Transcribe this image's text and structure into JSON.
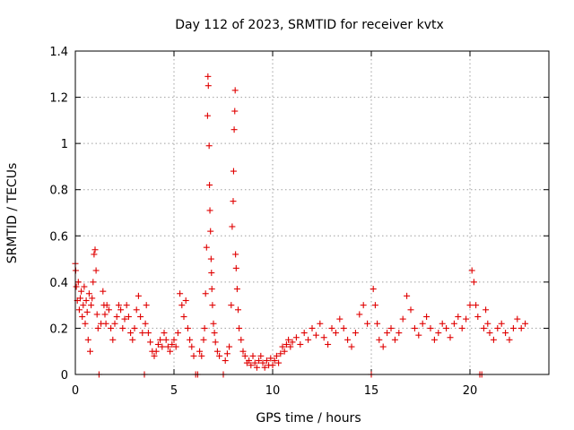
{
  "chart_data": {
    "type": "scatter",
    "title": "Day 112 of 2023, SRMTID for receiver kvtx",
    "xlabel": "GPS time / hours",
    "ylabel": "SRMTID / TECUs",
    "xlim": [
      0,
      24
    ],
    "ylim": [
      0,
      1.4
    ],
    "xticks": [
      0,
      5,
      10,
      15,
      20
    ],
    "yticks": [
      0,
      0.2,
      0.4,
      0.6,
      0.8,
      1.0,
      1.2,
      1.4
    ],
    "ytick_labels": [
      "0",
      "0.2",
      "0.4",
      "0.6",
      "0.8",
      "1",
      "1.2",
      "1.4"
    ],
    "grid": true,
    "marker": "+",
    "color": "#e00000",
    "series": [
      {
        "name": "SRMTID",
        "points": [
          [
            0.0,
            0.48
          ],
          [
            0.02,
            0.45
          ],
          [
            0.05,
            0.38
          ],
          [
            0.1,
            0.32
          ],
          [
            0.15,
            0.4
          ],
          [
            0.2,
            0.28
          ],
          [
            0.25,
            0.33
          ],
          [
            0.3,
            0.36
          ],
          [
            0.35,
            0.25
          ],
          [
            0.4,
            0.3
          ],
          [
            0.45,
            0.38
          ],
          [
            0.5,
            0.22
          ],
          [
            0.55,
            0.32
          ],
          [
            0.6,
            0.27
          ],
          [
            0.65,
            0.15
          ],
          [
            0.7,
            0.35
          ],
          [
            0.75,
            0.1
          ],
          [
            0.8,
            0.3
          ],
          [
            0.85,
            0.33
          ],
          [
            0.9,
            0.4
          ],
          [
            0.95,
            0.52
          ],
          [
            1.0,
            0.54
          ],
          [
            1.05,
            0.45
          ],
          [
            1.1,
            0.26
          ],
          [
            1.15,
            0.2
          ],
          [
            1.2,
            0.0
          ],
          [
            1.3,
            0.22
          ],
          [
            1.4,
            0.36
          ],
          [
            1.45,
            0.3
          ],
          [
            1.5,
            0.26
          ],
          [
            1.55,
            0.22
          ],
          [
            1.6,
            0.3
          ],
          [
            1.7,
            0.28
          ],
          [
            1.8,
            0.2
          ],
          [
            1.9,
            0.15
          ],
          [
            2.0,
            0.22
          ],
          [
            2.1,
            0.25
          ],
          [
            2.2,
            0.3
          ],
          [
            2.3,
            0.28
          ],
          [
            2.4,
            0.2
          ],
          [
            2.5,
            0.24
          ],
          [
            2.6,
            0.3
          ],
          [
            2.7,
            0.25
          ],
          [
            2.8,
            0.18
          ],
          [
            2.9,
            0.15
          ],
          [
            3.0,
            0.2
          ],
          [
            3.1,
            0.28
          ],
          [
            3.2,
            0.34
          ],
          [
            3.3,
            0.25
          ],
          [
            3.4,
            0.18
          ],
          [
            3.5,
            0.0
          ],
          [
            3.55,
            0.22
          ],
          [
            3.6,
            0.3
          ],
          [
            3.7,
            0.18
          ],
          [
            3.8,
            0.14
          ],
          [
            3.9,
            0.1
          ],
          [
            4.0,
            0.08
          ],
          [
            4.1,
            0.1
          ],
          [
            4.2,
            0.13
          ],
          [
            4.3,
            0.15
          ],
          [
            4.4,
            0.12
          ],
          [
            4.5,
            0.18
          ],
          [
            4.6,
            0.15
          ],
          [
            4.7,
            0.12
          ],
          [
            4.8,
            0.1
          ],
          [
            4.9,
            0.13
          ],
          [
            5.0,
            0.15
          ],
          [
            5.1,
            0.12
          ],
          [
            5.2,
            0.18
          ],
          [
            5.3,
            0.35
          ],
          [
            5.4,
            0.3
          ],
          [
            5.5,
            0.25
          ],
          [
            5.6,
            0.32
          ],
          [
            5.7,
            0.2
          ],
          [
            5.8,
            0.15
          ],
          [
            5.9,
            0.12
          ],
          [
            6.0,
            0.08
          ],
          [
            6.1,
            0.0
          ],
          [
            6.2,
            0.0
          ],
          [
            6.3,
            0.1
          ],
          [
            6.4,
            0.08
          ],
          [
            6.5,
            0.15
          ],
          [
            6.55,
            0.2
          ],
          [
            6.6,
            0.35
          ],
          [
            6.65,
            0.55
          ],
          [
            6.7,
            1.12
          ],
          [
            6.72,
            1.29
          ],
          [
            6.74,
            1.25
          ],
          [
            6.78,
            0.99
          ],
          [
            6.8,
            0.82
          ],
          [
            6.82,
            0.71
          ],
          [
            6.85,
            0.62
          ],
          [
            6.88,
            0.5
          ],
          [
            6.9,
            0.44
          ],
          [
            6.92,
            0.37
          ],
          [
            6.95,
            0.3
          ],
          [
            7.0,
            0.22
          ],
          [
            7.05,
            0.18
          ],
          [
            7.1,
            0.14
          ],
          [
            7.2,
            0.1
          ],
          [
            7.3,
            0.08
          ],
          [
            7.5,
            0.0
          ],
          [
            7.6,
            0.06
          ],
          [
            7.7,
            0.09
          ],
          [
            7.8,
            0.12
          ],
          [
            7.9,
            0.3
          ],
          [
            7.95,
            0.64
          ],
          [
            8.0,
            0.75
          ],
          [
            8.02,
            0.88
          ],
          [
            8.05,
            1.06
          ],
          [
            8.08,
            1.14
          ],
          [
            8.1,
            1.23
          ],
          [
            8.12,
            0.52
          ],
          [
            8.15,
            0.46
          ],
          [
            8.2,
            0.37
          ],
          [
            8.25,
            0.28
          ],
          [
            8.3,
            0.2
          ],
          [
            8.4,
            0.15
          ],
          [
            8.5,
            0.1
          ],
          [
            8.6,
            0.08
          ],
          [
            8.7,
            0.05
          ],
          [
            8.8,
            0.06
          ],
          [
            8.9,
            0.04
          ],
          [
            9.0,
            0.08
          ],
          [
            9.1,
            0.05
          ],
          [
            9.2,
            0.03
          ],
          [
            9.3,
            0.06
          ],
          [
            9.4,
            0.08
          ],
          [
            9.5,
            0.05
          ],
          [
            9.6,
            0.03
          ],
          [
            9.7,
            0.06
          ],
          [
            9.8,
            0.04
          ],
          [
            9.9,
            0.07
          ],
          [
            10.0,
            0.04
          ],
          [
            10.1,
            0.06
          ],
          [
            10.2,
            0.08
          ],
          [
            10.3,
            0.05
          ],
          [
            10.4,
            0.09
          ],
          [
            10.5,
            0.12
          ],
          [
            10.6,
            0.1
          ],
          [
            10.7,
            0.13
          ],
          [
            10.8,
            0.15
          ],
          [
            10.9,
            0.12
          ],
          [
            11.0,
            0.14
          ],
          [
            11.2,
            0.16
          ],
          [
            11.4,
            0.13
          ],
          [
            11.6,
            0.18
          ],
          [
            11.8,
            0.15
          ],
          [
            12.0,
            0.2
          ],
          [
            12.2,
            0.17
          ],
          [
            12.4,
            0.22
          ],
          [
            12.6,
            0.16
          ],
          [
            12.8,
            0.13
          ],
          [
            13.0,
            0.2
          ],
          [
            13.2,
            0.18
          ],
          [
            13.4,
            0.24
          ],
          [
            13.6,
            0.2
          ],
          [
            13.8,
            0.15
          ],
          [
            14.0,
            0.12
          ],
          [
            14.2,
            0.18
          ],
          [
            14.4,
            0.26
          ],
          [
            14.6,
            0.3
          ],
          [
            14.8,
            0.22
          ],
          [
            15.0,
            0.0
          ],
          [
            15.1,
            0.37
          ],
          [
            15.2,
            0.3
          ],
          [
            15.3,
            0.22
          ],
          [
            15.4,
            0.15
          ],
          [
            15.6,
            0.12
          ],
          [
            15.8,
            0.18
          ],
          [
            16.0,
            0.2
          ],
          [
            16.2,
            0.15
          ],
          [
            16.4,
            0.18
          ],
          [
            16.6,
            0.24
          ],
          [
            16.8,
            0.34
          ],
          [
            17.0,
            0.28
          ],
          [
            17.2,
            0.2
          ],
          [
            17.4,
            0.17
          ],
          [
            17.6,
            0.22
          ],
          [
            17.8,
            0.25
          ],
          [
            18.0,
            0.2
          ],
          [
            18.2,
            0.15
          ],
          [
            18.4,
            0.18
          ],
          [
            18.6,
            0.22
          ],
          [
            18.8,
            0.2
          ],
          [
            19.0,
            0.16
          ],
          [
            19.2,
            0.22
          ],
          [
            19.4,
            0.25
          ],
          [
            19.6,
            0.2
          ],
          [
            19.8,
            0.24
          ],
          [
            20.0,
            0.3
          ],
          [
            20.1,
            0.45
          ],
          [
            20.2,
            0.4
          ],
          [
            20.3,
            0.3
          ],
          [
            20.4,
            0.25
          ],
          [
            20.5,
            0.0
          ],
          [
            20.6,
            0.0
          ],
          [
            20.7,
            0.2
          ],
          [
            20.8,
            0.28
          ],
          [
            20.9,
            0.22
          ],
          [
            21.0,
            0.18
          ],
          [
            21.2,
            0.15
          ],
          [
            21.4,
            0.2
          ],
          [
            21.6,
            0.22
          ],
          [
            21.8,
            0.18
          ],
          [
            22.0,
            0.15
          ],
          [
            22.2,
            0.2
          ],
          [
            22.4,
            0.24
          ],
          [
            22.6,
            0.2
          ],
          [
            22.8,
            0.22
          ]
        ]
      }
    ]
  }
}
